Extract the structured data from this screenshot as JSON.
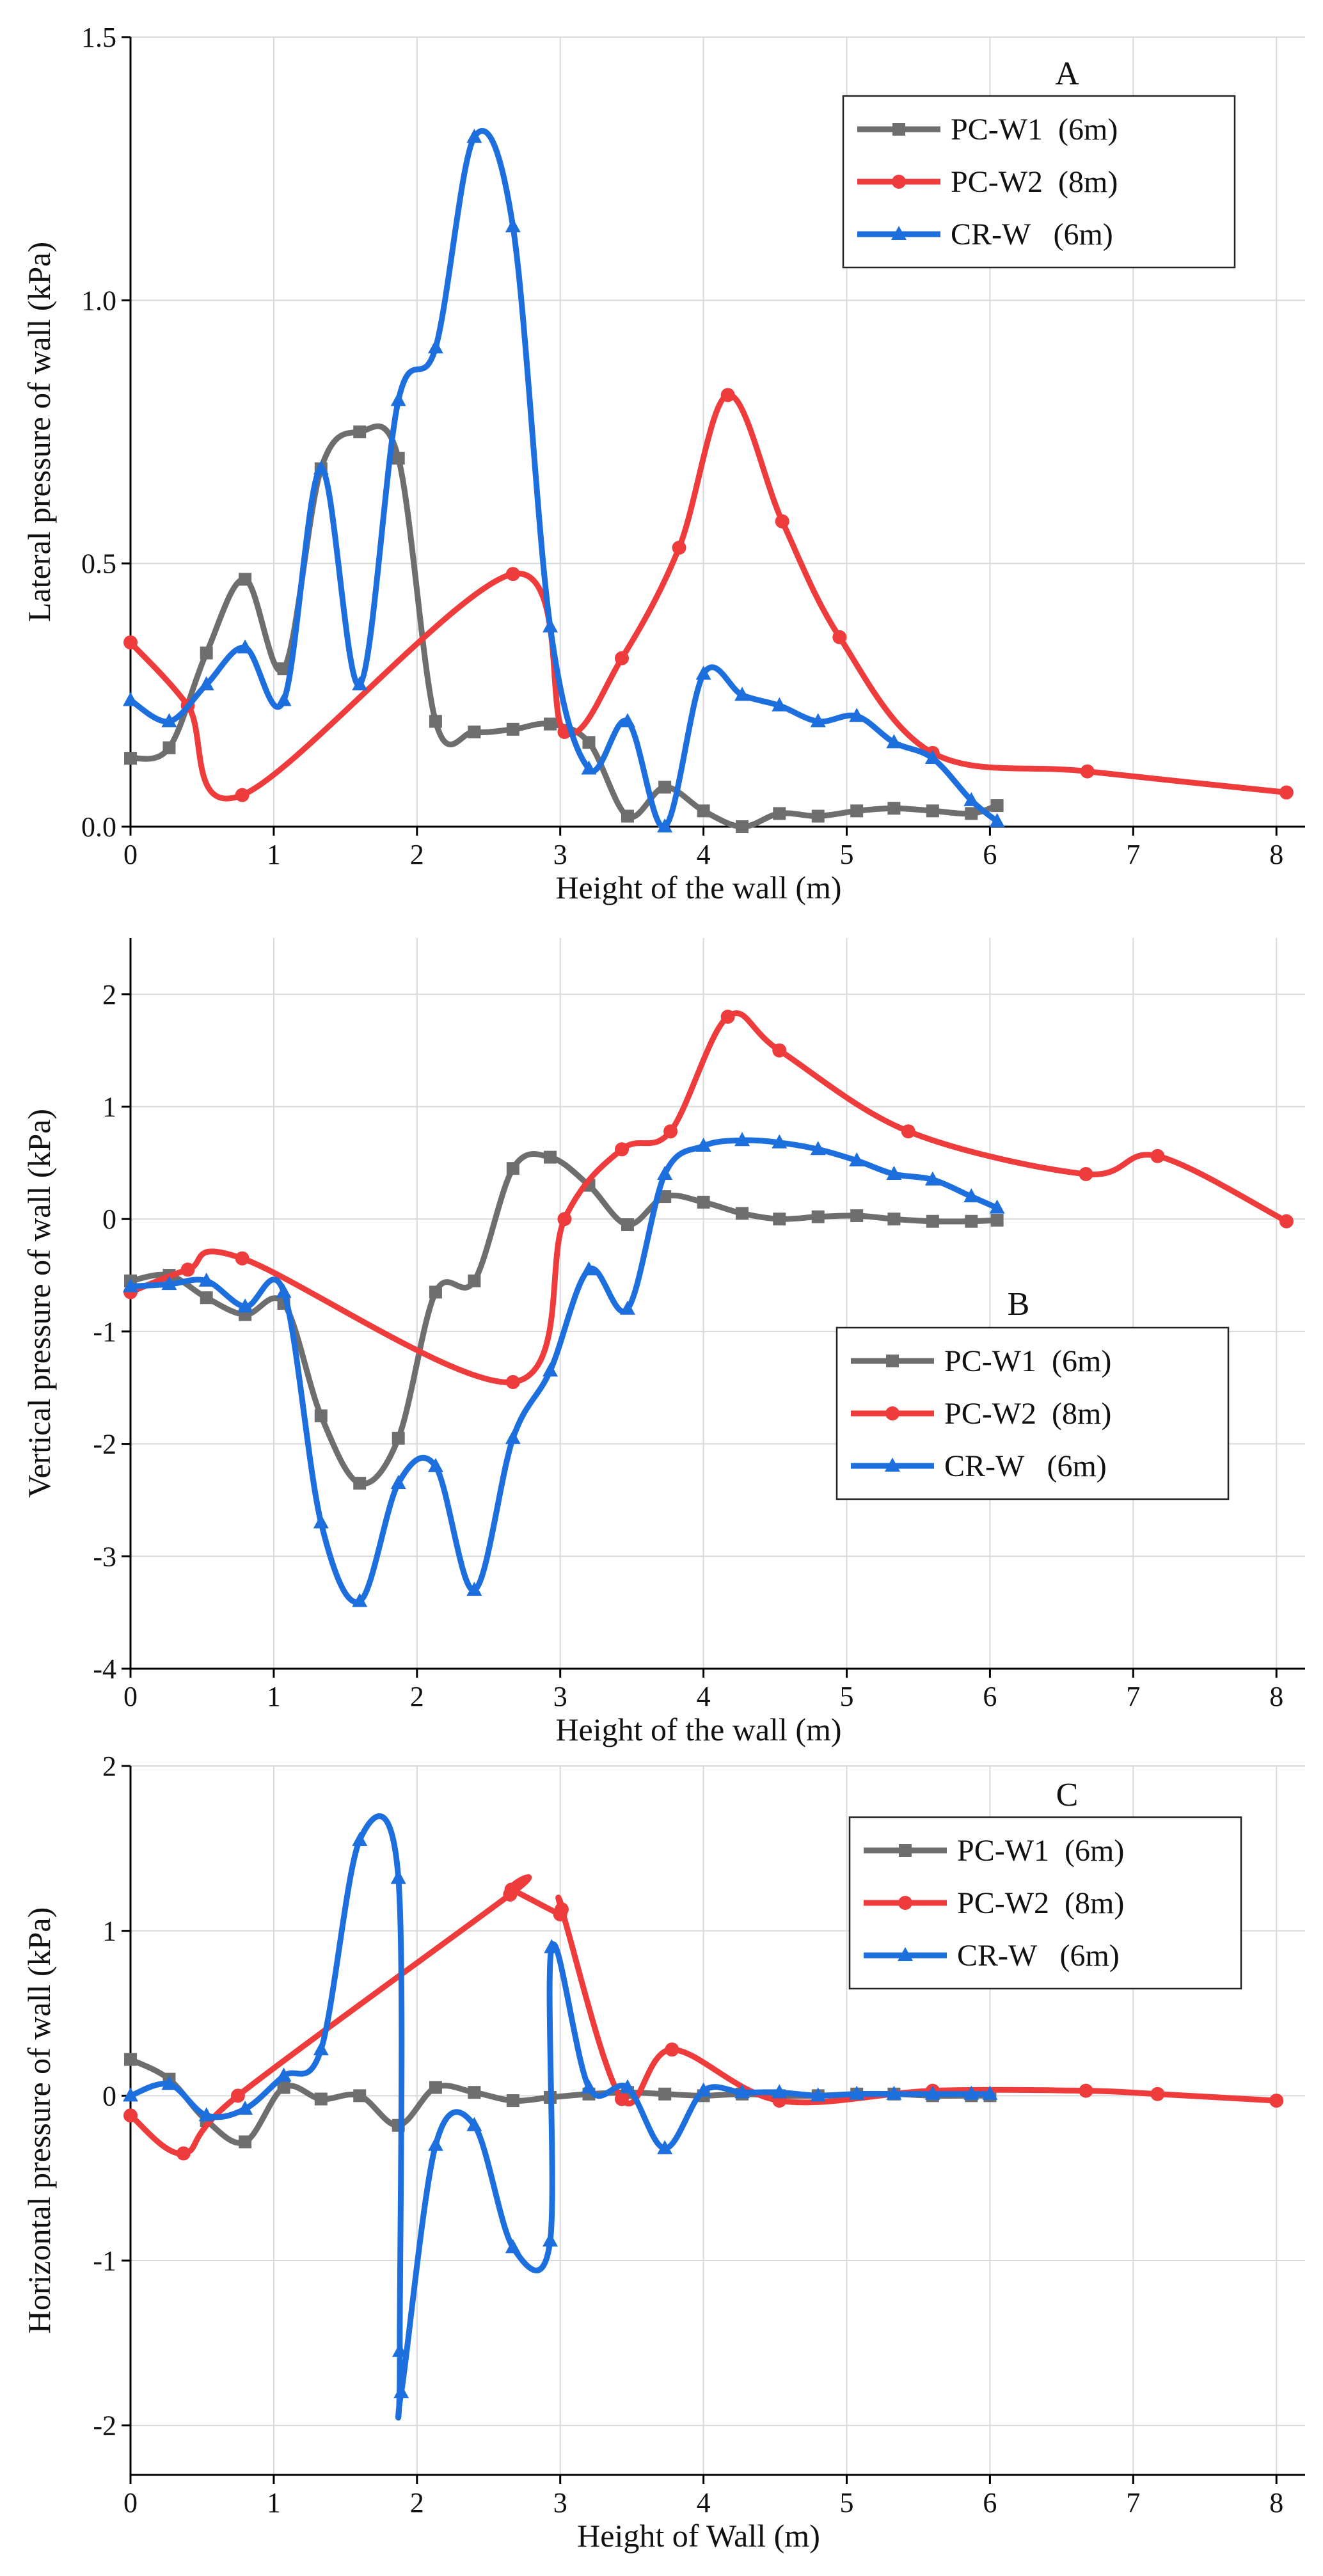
{
  "chart_data": [
    {
      "type": "line",
      "panel_label": "A",
      "xlabel": "Height of the wall (m)",
      "ylabel": "Lateral pressure of wall (kPa)",
      "xlim": [
        0,
        8.2
      ],
      "ylim": [
        0,
        1.5
      ],
      "xticks": [
        0,
        1,
        2,
        3,
        4,
        5,
        6,
        7,
        8
      ],
      "xtick_labels": [
        "0",
        "1",
        "2",
        "3",
        "4",
        "5",
        "6",
        "7",
        "8"
      ],
      "yticks": [
        0,
        0.5,
        1.0,
        1.5
      ],
      "ytick_labels": [
        "0.0",
        "0.5",
        "1.0",
        "1.5"
      ],
      "grid": true,
      "legend_position": "top-right",
      "series": [
        {
          "name": "PC-W1  (6m)",
          "color": "#6e6e6e",
          "marker": "square",
          "x": [
            0,
            0.27,
            0.53,
            0.8,
            1.07,
            1.33,
            1.6,
            1.87,
            2.13,
            2.4,
            2.67,
            2.93,
            3.2,
            3.47,
            3.73,
            4.0,
            4.27,
            4.53,
            4.8,
            5.07,
            5.33,
            5.6,
            5.87,
            6.05
          ],
          "y": [
            0.13,
            0.15,
            0.33,
            0.47,
            0.3,
            0.68,
            0.75,
            0.7,
            0.2,
            0.18,
            0.185,
            0.195,
            0.16,
            0.02,
            0.075,
            0.03,
            0.0,
            0.025,
            0.02,
            0.03,
            0.035,
            0.03,
            0.025,
            0.04
          ]
        },
        {
          "name": "PC-W2  (8m)",
          "color": "#ee3b3b",
          "marker": "circle",
          "x": [
            0,
            0.4,
            0.78,
            2.67,
            3.03,
            3.43,
            3.83,
            4.17,
            4.55,
            4.95,
            5.6,
            6.68,
            8.07
          ],
          "y": [
            0.35,
            0.23,
            0.06,
            0.48,
            0.18,
            0.32,
            0.53,
            0.82,
            0.58,
            0.36,
            0.14,
            0.105,
            0.065
          ]
        },
        {
          "name": "CR-W   (6m)",
          "color": "#1e6fde",
          "marker": "triangle",
          "x": [
            0,
            0.27,
            0.53,
            0.8,
            1.07,
            1.33,
            1.6,
            1.87,
            2.13,
            2.4,
            2.67,
            2.93,
            3.2,
            3.47,
            3.73,
            4.0,
            4.27,
            4.53,
            4.8,
            5.07,
            5.33,
            5.6,
            5.87,
            6.05
          ],
          "y": [
            0.24,
            0.2,
            0.27,
            0.34,
            0.24,
            0.68,
            0.27,
            0.81,
            0.91,
            1.31,
            1.14,
            0.38,
            0.11,
            0.2,
            0.0,
            0.29,
            0.25,
            0.23,
            0.2,
            0.21,
            0.16,
            0.13,
            0.05,
            0.01
          ]
        }
      ]
    },
    {
      "type": "line",
      "panel_label": "B",
      "xlabel": "Height of the wall (m)",
      "ylabel": "Vertical pressure of wall (kPa)",
      "xlim": [
        0,
        8.2
      ],
      "ylim": [
        -4,
        2.5
      ],
      "xticks": [
        0,
        1,
        2,
        3,
        4,
        5,
        6,
        7,
        8
      ],
      "xtick_labels": [
        "0",
        "1",
        "2",
        "3",
        "4",
        "5",
        "6",
        "7",
        "8"
      ],
      "yticks": [
        -4,
        -3,
        -2,
        -1,
        0,
        1,
        2
      ],
      "ytick_labels": [
        "-4",
        "-3",
        "-2",
        "-1",
        "0",
        "1",
        "2"
      ],
      "grid": true,
      "legend_position": "center-right",
      "series": [
        {
          "name": "PC-W1  (6m)",
          "color": "#6e6e6e",
          "marker": "square",
          "x": [
            0,
            0.27,
            0.53,
            0.8,
            1.07,
            1.33,
            1.6,
            1.87,
            2.13,
            2.4,
            2.67,
            2.93,
            3.2,
            3.47,
            3.73,
            4.0,
            4.27,
            4.53,
            4.8,
            5.07,
            5.33,
            5.6,
            5.87,
            6.05
          ],
          "y": [
            -0.55,
            -0.5,
            -0.7,
            -0.85,
            -0.75,
            -1.75,
            -2.35,
            -1.95,
            -0.65,
            -0.55,
            0.45,
            0.55,
            0.3,
            -0.05,
            0.2,
            0.15,
            0.05,
            0.0,
            0.02,
            0.03,
            0.0,
            -0.02,
            -0.02,
            -0.01
          ]
        },
        {
          "name": "PC-W2  (8m)",
          "color": "#ee3b3b",
          "marker": "circle",
          "x": [
            0,
            0.4,
            0.78,
            2.67,
            3.03,
            3.43,
            3.77,
            4.17,
            4.53,
            5.43,
            6.67,
            7.17,
            8.07
          ],
          "y": [
            -0.65,
            -0.45,
            -0.35,
            -1.45,
            0.0,
            0.62,
            0.78,
            1.8,
            1.5,
            0.78,
            0.4,
            0.56,
            -0.02
          ]
        },
        {
          "name": "CR-W   (6m)",
          "color": "#1e6fde",
          "marker": "triangle",
          "x": [
            0,
            0.27,
            0.53,
            0.8,
            1.07,
            1.33,
            1.6,
            1.87,
            2.13,
            2.4,
            2.67,
            2.93,
            3.2,
            3.47,
            3.73,
            4.0,
            4.27,
            4.53,
            4.8,
            5.07,
            5.33,
            5.6,
            5.87,
            6.05
          ],
          "y": [
            -0.6,
            -0.58,
            -0.55,
            -0.78,
            -0.65,
            -2.7,
            -3.4,
            -2.35,
            -2.2,
            -3.3,
            -1.95,
            -1.35,
            -0.45,
            -0.8,
            0.4,
            0.65,
            0.7,
            0.68,
            0.62,
            0.52,
            0.4,
            0.35,
            0.2,
            0.1
          ]
        }
      ]
    },
    {
      "type": "line",
      "panel_label": "C",
      "xlabel": "Height of Wall (m)",
      "ylabel": "Horizontal pressure of wall (kPa)",
      "xlim": [
        0,
        8.2
      ],
      "ylim": [
        -2.3,
        2
      ],
      "xticks": [
        0,
        1,
        2,
        3,
        4,
        5,
        6,
        7,
        8
      ],
      "xtick_labels": [
        "0",
        "1",
        "2",
        "3",
        "4",
        "5",
        "6",
        "7",
        "8"
      ],
      "yticks": [
        -2,
        -1,
        0,
        1,
        2
      ],
      "ytick_labels": [
        "-2",
        "-1",
        "0",
        "1",
        "2"
      ],
      "grid": true,
      "legend_position": "top-right",
      "series": [
        {
          "name": "PC-W1  (6m)",
          "color": "#6e6e6e",
          "marker": "square",
          "x": [
            0,
            0.27,
            0.53,
            0.8,
            1.07,
            1.33,
            1.6,
            1.87,
            2.13,
            2.4,
            2.67,
            2.93,
            3.2,
            3.47,
            3.73,
            4.0,
            4.27,
            4.53,
            4.8,
            5.07,
            5.33,
            5.6,
            5.87,
            6.0
          ],
          "y": [
            0.22,
            0.1,
            -0.15,
            -0.28,
            0.05,
            -0.02,
            0.0,
            -0.18,
            0.05,
            0.02,
            -0.03,
            -0.01,
            0.01,
            0.02,
            0.01,
            0.0,
            0.01,
            0.0,
            0.0,
            0.01,
            0.01,
            0.0,
            0.0,
            0.0
          ]
        },
        {
          "name": "PC-W2  (8m)",
          "color": "#ee3b3b",
          "marker": "circle",
          "x": [
            0,
            0.37,
            0.75,
            2.65,
            2.66,
            3.0,
            3.01,
            3.43,
            3.78,
            4.53,
            5.6,
            6.67,
            7.17,
            8.0
          ],
          "y": [
            -0.12,
            -0.35,
            0.0,
            1.22,
            1.25,
            1.1,
            1.13,
            -0.02,
            0.28,
            -0.03,
            0.03,
            0.03,
            0.01,
            -0.03
          ]
        },
        {
          "name": "CR-W   (6m)",
          "color": "#1e6fde",
          "marker": "triangle",
          "x": [
            0,
            0.27,
            0.53,
            0.8,
            1.07,
            1.33,
            1.6,
            1.87,
            1.88,
            1.89,
            2.13,
            2.4,
            2.67,
            2.93,
            2.94,
            3.2,
            3.47,
            3.73,
            4.0,
            4.27,
            4.53,
            4.8,
            5.07,
            5.33,
            5.6,
            5.87,
            6.0
          ],
          "y": [
            0.0,
            0.07,
            -0.12,
            -0.08,
            0.12,
            0.28,
            1.55,
            1.32,
            -1.55,
            -1.8,
            -0.3,
            -0.18,
            -0.92,
            -0.88,
            0.9,
            0.05,
            0.05,
            -0.32,
            0.03,
            0.02,
            0.02,
            0.0,
            0.01,
            0.01,
            0.01,
            0.01,
            0.01
          ]
        }
      ]
    }
  ]
}
